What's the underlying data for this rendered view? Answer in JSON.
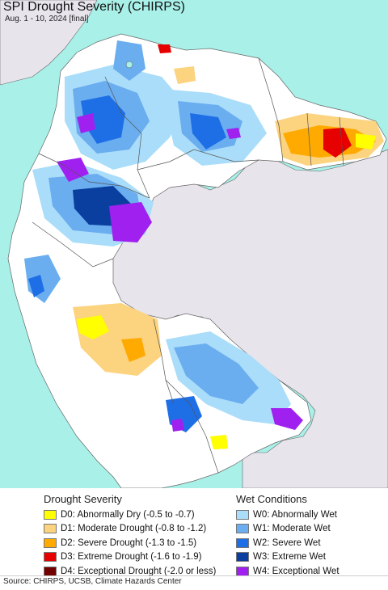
{
  "title": "SPI Drought Severity (CHIRPS)",
  "subtitle": "Aug. 1 - 10, 2024 [final]",
  "legend": {
    "drought_heading": "Drought Severity",
    "wet_heading": "Wet Conditions",
    "drought_items": [
      {
        "label": "D0: Abnormally Dry (-0.5 to -0.7)",
        "color": "#ffff00"
      },
      {
        "label": "D1: Moderate Drought (-0.8 to -1.2)",
        "color": "#fcd37f"
      },
      {
        "label": "D2: Severe Drought (-1.3 to -1.5)",
        "color": "#ffaa00"
      },
      {
        "label": "D3: Extreme Drought (-1.6 to -1.9)",
        "color": "#e60000"
      },
      {
        "label": "D4: Exceptional Drought (-2.0 or less)",
        "color": "#730000"
      }
    ],
    "wet_items": [
      {
        "label": "W0: Abnormally Wet",
        "color": "#aaddf9"
      },
      {
        "label": "W1: Moderate Wet",
        "color": "#6aaef0"
      },
      {
        "label": "W2: Severe Wet",
        "color": "#1e6fe6"
      },
      {
        "label": "W3: Extreme Wet",
        "color": "#0a3fa0"
      },
      {
        "label": "W4: Exceptional Wet",
        "color": "#a020f0"
      }
    ]
  },
  "map_colors": {
    "ocean": "#a8f0e8",
    "land_outside": "#e8e4ec",
    "land": "#ffffff",
    "border": "#555555"
  },
  "footer": "Source: CHIRPS, UCSB, Climate Hazards Center"
}
